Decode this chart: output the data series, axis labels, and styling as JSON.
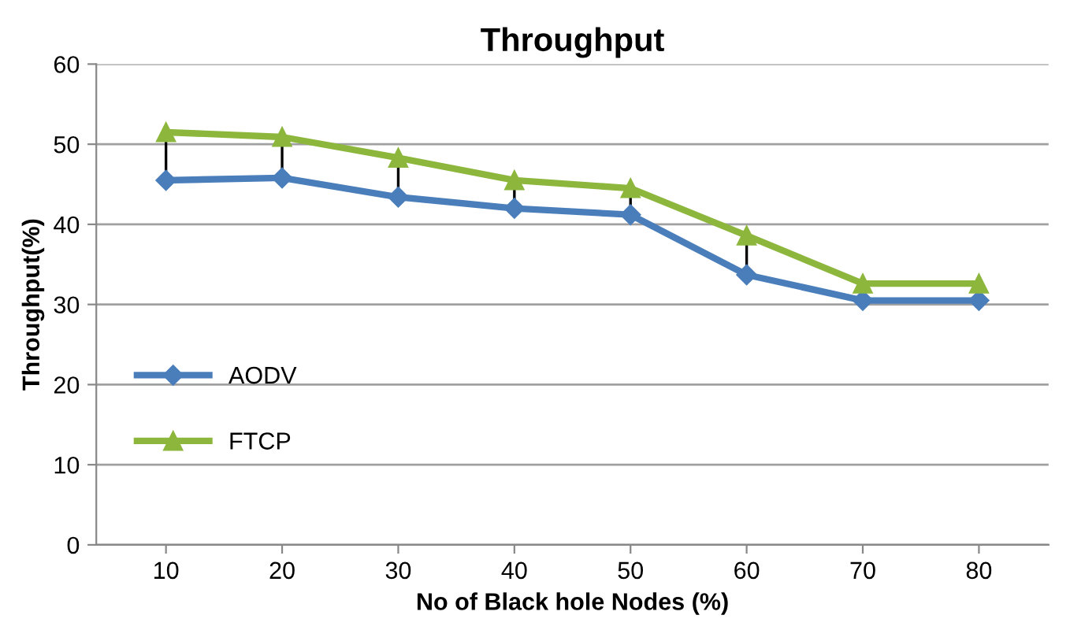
{
  "chart_data": {
    "type": "line",
    "title": "Throughput",
    "xlabel": "No of Black hole Nodes (%)",
    "ylabel": "Throughput(%)",
    "categories": [
      "10",
      "20",
      "30",
      "40",
      "50",
      "60",
      "70",
      "80"
    ],
    "series": [
      {
        "name": "AODV",
        "color": "#4a7ebb",
        "marker": "diamond",
        "values": [
          45.5,
          45.8,
          43.4,
          42.0,
          41.2,
          33.7,
          30.5,
          30.5
        ]
      },
      {
        "name": "FTCP",
        "color": "#8cb63c",
        "marker": "triangle",
        "values": [
          51.5,
          50.9,
          48.3,
          45.5,
          44.5,
          38.6,
          32.6,
          32.6
        ]
      }
    ],
    "ylim": [
      0,
      60
    ],
    "yticks": [
      0,
      10,
      20,
      30,
      40,
      50,
      60
    ],
    "grid": "y",
    "legend": "left",
    "line_style": "solid"
  }
}
